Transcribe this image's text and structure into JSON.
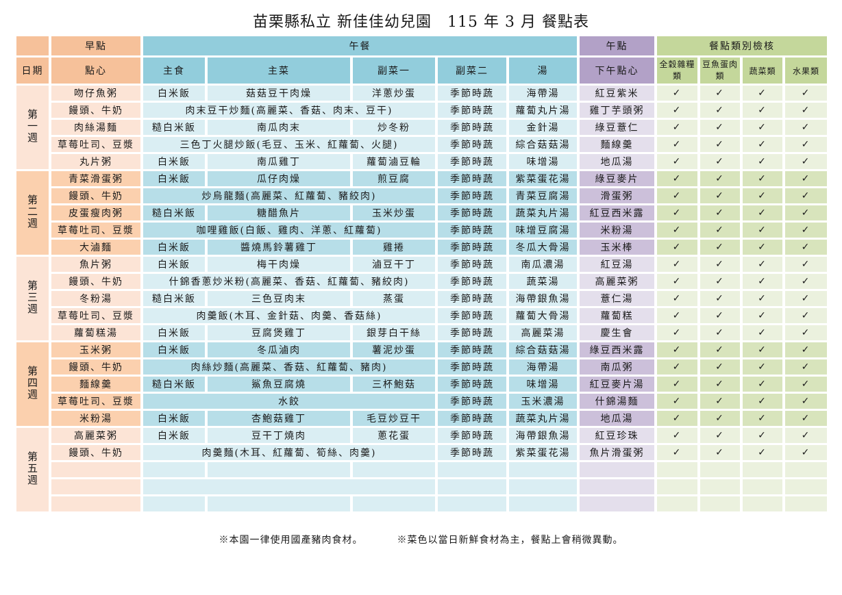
{
  "title": "苗栗縣私立 新佳佳幼兒園　115 年 3 月 餐點表",
  "header": {
    "group_breakfast": "早點",
    "group_lunch": "午餐",
    "group_snack": "午點",
    "group_check": "餐點類別檢核",
    "col_date": "日期",
    "col_breakfast": "點心",
    "col_staple": "主食",
    "col_main": "主菜",
    "col_side1": "副菜一",
    "col_side2": "副菜二",
    "col_soup": "湯",
    "col_afternoon": "下午點心",
    "col_grains": "全穀雜糧類",
    "col_protein": "豆魚蛋肉類",
    "col_veg": "蔬菜類",
    "col_fruit": "水果類"
  },
  "check_mark": "✓",
  "weeks": [
    {
      "label": "第一週",
      "rows": [
        {
          "breakfast": "吻仔魚粥",
          "staple": "白米飯",
          "main": "菇菇豆干肉燥",
          "side1": "洋蔥炒蛋",
          "side2": "季節時蔬",
          "soup": "海帶湯",
          "afternoon": "紅豆紫米",
          "checks": [
            "✓",
            "✓",
            "✓",
            "✓"
          ]
        },
        {
          "breakfast": "饅頭、牛奶",
          "combined": "肉末豆干炒麵(高麗菜、香菇、肉末、豆干)",
          "side2": "季節時蔬",
          "soup": "蘿蔔丸片湯",
          "afternoon": "雞丁芋頭粥",
          "checks": [
            "✓",
            "✓",
            "✓",
            "✓"
          ]
        },
        {
          "breakfast": "肉絲湯麵",
          "staple": "糙白米飯",
          "main": "南瓜肉末",
          "side1": "炒冬粉",
          "side2": "季節時蔬",
          "soup": "金針湯",
          "afternoon": "綠豆薏仁",
          "checks": [
            "✓",
            "✓",
            "✓",
            "✓"
          ]
        },
        {
          "breakfast": "草莓吐司、豆漿",
          "combined": "三色丁火腿炒飯(毛豆、玉米、紅蘿蔔、火腿)",
          "side2": "季節時蔬",
          "soup": "綜合菇菇湯",
          "afternoon": "麵線羹",
          "checks": [
            "✓",
            "✓",
            "✓",
            "✓"
          ]
        },
        {
          "breakfast": "丸片粥",
          "staple": "白米飯",
          "main": "南瓜雞丁",
          "side1": "蘿蔔滷豆輪",
          "side2": "季節時蔬",
          "soup": "味增湯",
          "afternoon": "地瓜湯",
          "checks": [
            "✓",
            "✓",
            "✓",
            "✓"
          ]
        }
      ]
    },
    {
      "label": "第二週",
      "rows": [
        {
          "breakfast": "青菜滑蛋粥",
          "staple": "白米飯",
          "main": "瓜仔肉燥",
          "side1": "煎豆腐",
          "side2": "季節時蔬",
          "soup": "紫菜蛋花湯",
          "afternoon": "綠豆麥片",
          "checks": [
            "✓",
            "✓",
            "✓",
            "✓"
          ]
        },
        {
          "breakfast": "饅頭、牛奶",
          "combined": "炒烏龍麵(高麗菜、紅蘿蔔、豬絞肉)",
          "side2": "季節時蔬",
          "soup": "青菜豆腐湯",
          "afternoon": "滑蛋粥",
          "checks": [
            "✓",
            "✓",
            "✓",
            "✓"
          ]
        },
        {
          "breakfast": "皮蛋瘦肉粥",
          "staple": "糙白米飯",
          "main": "糖醋魚片",
          "side1": "玉米炒蛋",
          "side2": "季節時蔬",
          "soup": "蔬菜丸片湯",
          "afternoon": "紅豆西米露",
          "checks": [
            "✓",
            "✓",
            "✓",
            "✓"
          ]
        },
        {
          "breakfast": "草莓吐司、豆漿",
          "combined": "咖哩雞飯(白飯、雞肉、洋蔥、紅蘿蔔)",
          "side2": "季節時蔬",
          "soup": "味增豆腐湯",
          "afternoon": "米粉湯",
          "checks": [
            "✓",
            "✓",
            "✓",
            "✓"
          ]
        },
        {
          "breakfast": "大滷麵",
          "staple": "白米飯",
          "main": "醬燒馬鈴薯雞丁",
          "side1": "雞捲",
          "side2": "季節時蔬",
          "soup": "冬瓜大骨湯",
          "afternoon": "玉米棒",
          "checks": [
            "✓",
            "✓",
            "✓",
            "✓"
          ]
        }
      ]
    },
    {
      "label": "第三週",
      "rows": [
        {
          "breakfast": "魚片粥",
          "staple": "白米飯",
          "main": "梅干肉燥",
          "side1": "滷豆干丁",
          "side2": "季節時蔬",
          "soup": "南瓜濃湯",
          "afternoon": "紅豆湯",
          "checks": [
            "✓",
            "✓",
            "✓",
            "✓"
          ]
        },
        {
          "breakfast": "饅頭、牛奶",
          "combined": "什錦香蔥炒米粉(高麗菜、香菇、紅蘿蔔、豬絞肉)",
          "side2": "季節時蔬",
          "soup": "蔬菜湯",
          "afternoon": "高麗菜粥",
          "checks": [
            "✓",
            "✓",
            "✓",
            "✓"
          ]
        },
        {
          "breakfast": "冬粉湯",
          "staple": "糙白米飯",
          "main": "三色豆肉末",
          "side1": "蒸蛋",
          "side2": "季節時蔬",
          "soup": "海帶銀魚湯",
          "afternoon": "薏仁湯",
          "checks": [
            "✓",
            "✓",
            "✓",
            "✓"
          ]
        },
        {
          "breakfast": "草莓吐司、豆漿",
          "combined": "肉羹飯(木耳、金針菇、肉羹、香菇絲)",
          "side2": "季節時蔬",
          "soup": "蘿蔔大骨湯",
          "afternoon": "蘿蔔糕",
          "checks": [
            "✓",
            "✓",
            "✓",
            "✓"
          ]
        },
        {
          "breakfast": "蘿蔔糕湯",
          "staple": "白米飯",
          "main": "豆腐煲雞丁",
          "side1": "銀芽白干絲",
          "side2": "季節時蔬",
          "soup": "高麗菜湯",
          "afternoon": "慶生會",
          "checks": [
            "✓",
            "✓",
            "✓",
            "✓"
          ]
        }
      ]
    },
    {
      "label": "第四週",
      "rows": [
        {
          "breakfast": "玉米粥",
          "staple": "白米飯",
          "main": "冬瓜滷肉",
          "side1": "薯泥炒蛋",
          "side2": "季節時蔬",
          "soup": "綜合菇菇湯",
          "afternoon": "綠豆西米露",
          "checks": [
            "✓",
            "✓",
            "✓",
            "✓"
          ]
        },
        {
          "breakfast": "饅頭、牛奶",
          "combined": "肉絲炒麵(高麗菜、香菇、紅蘿蔔、豬肉)",
          "side2": "季節時蔬",
          "soup": "海帶湯",
          "afternoon": "南瓜粥",
          "checks": [
            "✓",
            "✓",
            "✓",
            "✓"
          ]
        },
        {
          "breakfast": "麵線羹",
          "staple": "糙白米飯",
          "main": "鯊魚豆腐燒",
          "side1": "三杯鮑菇",
          "side2": "季節時蔬",
          "soup": "味增湯",
          "afternoon": "紅豆麥片湯",
          "checks": [
            "✓",
            "✓",
            "✓",
            "✓"
          ]
        },
        {
          "breakfast": "草莓吐司、豆漿",
          "combined": "水餃",
          "side2": "季節時蔬",
          "soup": "玉米濃湯",
          "afternoon": "什錦湯麵",
          "checks": [
            "✓",
            "✓",
            "✓",
            "✓"
          ]
        },
        {
          "breakfast": "米粉湯",
          "staple": "白米飯",
          "main": "杏鮑菇雞丁",
          "side1": "毛豆炒豆干",
          "side2": "季節時蔬",
          "soup": "蔬菜丸片湯",
          "afternoon": "地瓜湯",
          "checks": [
            "✓",
            "✓",
            "✓",
            "✓"
          ]
        }
      ]
    },
    {
      "label": "第五週",
      "rows": [
        {
          "breakfast": "高麗菜粥",
          "staple": "白米飯",
          "main": "豆干丁燒肉",
          "side1": "蔥花蛋",
          "side2": "季節時蔬",
          "soup": "海帶銀魚湯",
          "afternoon": "紅豆珍珠",
          "checks": [
            "✓",
            "✓",
            "✓",
            "✓"
          ]
        },
        {
          "breakfast": "饅頭、牛奶",
          "combined": "肉羹麵(木耳、紅蘿蔔、筍絲、肉羹)",
          "side2": "季節時蔬",
          "soup": "紫菜蛋花湯",
          "afternoon": "魚片滑蛋粥",
          "checks": [
            "✓",
            "✓",
            "✓",
            "✓"
          ]
        },
        {
          "breakfast": "",
          "staple": "",
          "main": "",
          "side1": "",
          "side2": "",
          "soup": "",
          "afternoon": "",
          "checks": [
            "",
            "",
            "",
            ""
          ]
        },
        {
          "breakfast": "",
          "combined": "",
          "side2": "",
          "soup": "",
          "afternoon": "",
          "checks": [
            "",
            "",
            "",
            ""
          ]
        },
        {
          "breakfast": "",
          "staple": "",
          "main": "",
          "side1": "",
          "side2": "",
          "soup": "",
          "afternoon": "",
          "checks": [
            "",
            "",
            "",
            ""
          ]
        }
      ]
    }
  ],
  "footer": {
    "note1": "※本園一律使用國產豬肉食材。",
    "note2": "※菜色以當日新鮮食材為主，餐點上會稍微異動。"
  },
  "colors": {
    "header_orange": "#f6c19a",
    "header_blue": "#92cddc",
    "header_purple": "#b2a1c7",
    "header_green": "#c4d79b",
    "light_orange": "#fce4d6",
    "light_blue": "#daeef3",
    "light_purple": "#e4dfec",
    "light_green": "#ebf1de",
    "dark_orange": "#fbd0ae",
    "dark_blue": "#b7dee8",
    "dark_purple": "#ccc0da",
    "dark_green": "#d8e4bc"
  }
}
